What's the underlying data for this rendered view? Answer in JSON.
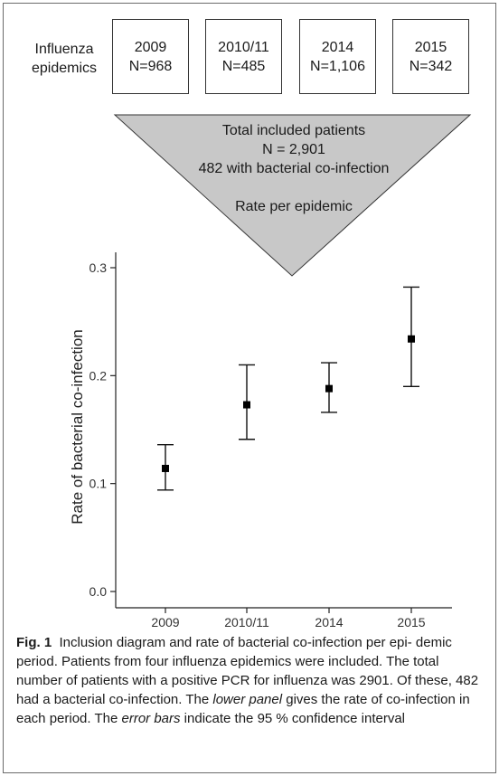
{
  "diagram": {
    "row_label_line1": "Influenza",
    "row_label_line2": "epidemics",
    "epidemics": [
      {
        "year": "2009",
        "n": "N=968"
      },
      {
        "year": "2010/11",
        "n": "N=485"
      },
      {
        "year": "2014",
        "n": "N=1,106"
      },
      {
        "year": "2015",
        "n": "N=342"
      }
    ],
    "funnel_line1": "Total included patients",
    "funnel_line2": "N = 2,901",
    "funnel_line3": "482 with bacterial co-infection",
    "funnel_line4": "Rate per epidemic",
    "funnel_color": "#c8c8c8"
  },
  "chart_data": {
    "type": "scatter",
    "categories": [
      "2009",
      "2010/11",
      "2014",
      "2015"
    ],
    "values": [
      0.114,
      0.173,
      0.188,
      0.234
    ],
    "ci_lower": [
      0.094,
      0.141,
      0.166,
      0.19
    ],
    "ci_upper": [
      0.136,
      0.21,
      0.212,
      0.282
    ],
    "ylabel": "Rate of bacterial co-infection",
    "xlabel": "",
    "ylim": [
      0.0,
      0.3
    ],
    "yticks": [
      "0.0",
      "0.1",
      "0.2",
      "0.3"
    ],
    "grid": false,
    "marker": "square",
    "error_bars": "95% confidence interval"
  },
  "caption": {
    "fig_label": "Fig. 1",
    "part1": "Inclusion diagram and rate of bacterial co-infection per epi- demic period. Patients from four influenza epidemics were included. The total number of patients with a positive PCR for influenza was 2901. Of these, 482 had a bacterial co-infection. The ",
    "italic1": "lower panel",
    "part2": " gives the rate of co-infection in each period. The ",
    "italic2": "error bars",
    "part3": " indicate the 95 % confidence interval"
  }
}
